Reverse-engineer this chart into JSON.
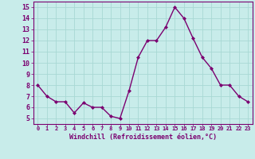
{
  "x": [
    0,
    1,
    2,
    3,
    4,
    5,
    6,
    7,
    8,
    9,
    10,
    11,
    12,
    13,
    14,
    15,
    16,
    17,
    18,
    19,
    20,
    21,
    22,
    23
  ],
  "y": [
    8.0,
    7.0,
    6.5,
    6.5,
    5.5,
    6.4,
    6.0,
    6.0,
    5.2,
    5.0,
    7.5,
    10.5,
    12.0,
    12.0,
    13.2,
    15.0,
    14.0,
    12.2,
    10.5,
    9.5,
    8.0,
    8.0,
    7.0,
    6.5
  ],
  "line_color": "#7b0070",
  "marker_color": "#7b0070",
  "bg_color": "#c8ecea",
  "grid_color": "#a8d8d4",
  "xlabel": "Windchill (Refroidissement éolien,°C)",
  "tick_color": "#7b0070",
  "xlim": [
    -0.5,
    23.5
  ],
  "ylim": [
    4.5,
    15.5
  ],
  "yticks": [
    5,
    6,
    7,
    8,
    9,
    10,
    11,
    12,
    13,
    14,
    15
  ],
  "xticks": [
    0,
    1,
    2,
    3,
    4,
    5,
    6,
    7,
    8,
    9,
    10,
    11,
    12,
    13,
    14,
    15,
    16,
    17,
    18,
    19,
    20,
    21,
    22,
    23
  ]
}
